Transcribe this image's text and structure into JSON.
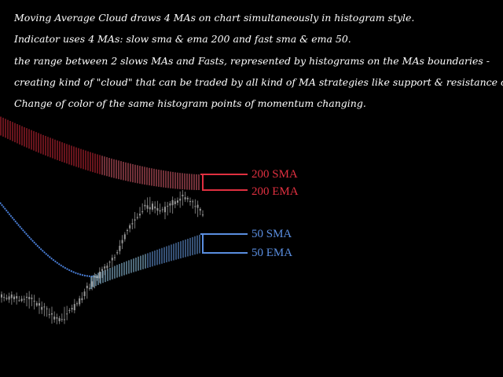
{
  "description": [
    "Moving Average Cloud draws 4 MAs on chart simultaneously in histogram style.",
    "Indicator uses 4 MAs: slow sma & ema 200 and fast sma & ema 50.",
    "the range between 2 slows MAs and Fasts, represented by histograms on the MAs boundaries -",
    "creating kind of \"cloud\" that can be traded by all kind of MA strategies like support & resistance or other...",
    "Change of color of the same histogram points of momentum changing."
  ],
  "labels": [
    "200 SMA",
    "200 EMA",
    "50 SMA",
    "50 EMA"
  ]
}
